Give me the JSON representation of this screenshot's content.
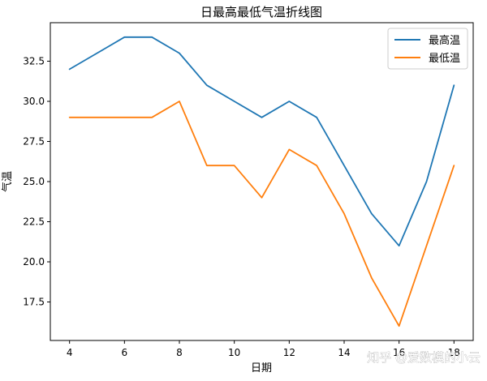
{
  "chart_data": {
    "type": "line",
    "title": "日最高最低气温折线图",
    "xlabel": "日期",
    "ylabel": "气温",
    "x": [
      4,
      5,
      6,
      7,
      8,
      9,
      10,
      11,
      12,
      13,
      14,
      15,
      16,
      17,
      18
    ],
    "series": [
      {
        "name": "最高温",
        "color": "#1f77b4",
        "values": [
          32,
          33,
          34,
          34,
          33,
          31,
          30,
          29,
          30,
          29,
          26,
          23,
          21,
          25,
          31
        ]
      },
      {
        "name": "最低温",
        "color": "#ff7f0e",
        "values": [
          29,
          29,
          29,
          29,
          30,
          26,
          26,
          24,
          27,
          26,
          23,
          19,
          16,
          21,
          26
        ]
      }
    ],
    "xlim": [
      3.3,
      18.7
    ],
    "ylim": [
      15.1,
      34.9
    ],
    "xticks": [
      4,
      6,
      8,
      10,
      12,
      14,
      16,
      18
    ],
    "xtick_labels": [
      "4",
      "6",
      "8",
      "10",
      "12",
      "14",
      "16",
      "18"
    ],
    "yticks": [
      17.5,
      20.0,
      22.5,
      25.0,
      27.5,
      30.0,
      32.5
    ],
    "ytick_labels": [
      "17.5",
      "20.0",
      "22.5",
      "25.0",
      "27.5",
      "30.0",
      "32.5"
    ],
    "grid": false,
    "legend_position": "top-right"
  },
  "watermark": "知乎 @爱数模的小云"
}
